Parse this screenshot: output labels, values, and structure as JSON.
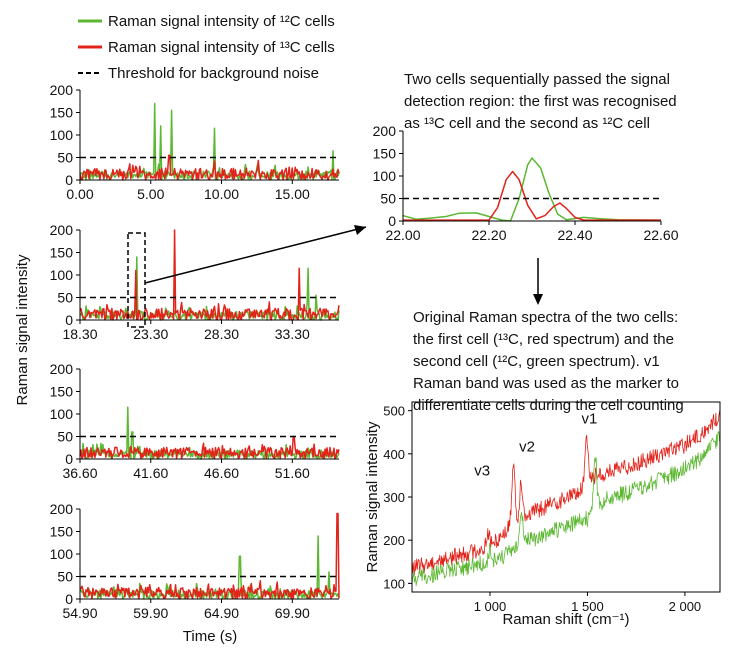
{
  "legend": {
    "green_label": "Raman signal intensity of ¹²C cells",
    "red_label": "Raman signal intensity of ¹³C cells",
    "threshold_label": "Threshold for background noise"
  },
  "colors": {
    "green": "#5cb832",
    "red": "#e2231a",
    "threshold": "#000000"
  },
  "annotations": {
    "top_right": [
      "Two cells sequentially passed the signal",
      "detection region: the first was recognised",
      "as ¹³C cell and the second as ¹²C cell"
    ],
    "bottom_right": [
      "Original Raman spectra of the two cells:",
      "the first cell (¹³C, red spectrum) and the",
      "second cell (¹²C, green spectrum). v1",
      "Raman band was used as the marker to",
      "differentiate cells during the cell counting"
    ]
  },
  "chart_data": [
    {
      "id": "time-series-1",
      "type": "line",
      "xlim": [
        0,
        18.3
      ],
      "ylim": [
        0,
        200
      ],
      "xticks": [
        "0.00",
        "5.00",
        "10.00",
        "15.00"
      ],
      "xtick_values": [
        0,
        5,
        10,
        15
      ],
      "yticks": [
        "0",
        "50",
        "100",
        "150",
        "200"
      ],
      "ytick_values": [
        0,
        50,
        100,
        150,
        200
      ],
      "threshold": 50,
      "series": [
        {
          "color": "green",
          "peaks": [
            [
              5.3,
              170
            ],
            [
              5.7,
              120
            ],
            [
              6.5,
              155
            ],
            [
              9.5,
              115
            ],
            [
              17.9,
              65
            ]
          ]
        },
        {
          "color": "red",
          "peaks": [
            [
              6.3,
              55
            ]
          ]
        }
      ]
    },
    {
      "id": "time-series-2",
      "type": "line",
      "xlim": [
        18.3,
        36.6
      ],
      "ylim": [
        0,
        200
      ],
      "xticks": [
        "18.30",
        "23.30",
        "28.30",
        "33.30"
      ],
      "xtick_values": [
        18.3,
        23.3,
        28.3,
        33.3
      ],
      "yticks": [
        "0",
        "50",
        "100",
        "150",
        "200"
      ],
      "ytick_values": [
        0,
        50,
        100,
        150,
        200
      ],
      "threshold": 50,
      "ylabel": "Raman signal intensity",
      "series": [
        {
          "color": "green",
          "peaks": [
            [
              22.3,
              140
            ],
            [
              34.4,
              115
            ],
            [
              35.0,
              55
            ]
          ]
        },
        {
          "color": "red",
          "peaks": [
            [
              22.25,
              110
            ],
            [
              25.0,
              200
            ],
            [
              33.8,
              115
            ]
          ]
        }
      ]
    },
    {
      "id": "time-series-3",
      "type": "line",
      "xlim": [
        36.6,
        54.9
      ],
      "ylim": [
        0,
        200
      ],
      "xticks": [
        "36.60",
        "41.60",
        "46.60",
        "51.60"
      ],
      "xtick_values": [
        36.6,
        41.6,
        46.6,
        51.6
      ],
      "yticks": [
        "0",
        "50",
        "100",
        "150",
        "200"
      ],
      "ytick_values": [
        0,
        50,
        100,
        150,
        200
      ],
      "threshold": 50,
      "series": [
        {
          "color": "green",
          "peaks": [
            [
              40.0,
              115
            ],
            [
              40.3,
              60
            ]
          ]
        },
        {
          "color": "red",
          "peaks": [
            [
              51.7,
              50
            ]
          ]
        }
      ]
    },
    {
      "id": "time-series-4",
      "type": "line",
      "xlim": [
        54.9,
        73.2
      ],
      "ylim": [
        0,
        200
      ],
      "xticks": [
        "54.90",
        "59.90",
        "64.90",
        "69.90"
      ],
      "xtick_values": [
        54.9,
        59.9,
        64.9,
        69.9
      ],
      "yticks": [
        "0",
        "50",
        "100",
        "150",
        "200"
      ],
      "ytick_values": [
        0,
        50,
        100,
        150,
        200
      ],
      "threshold": 50,
      "xlabel": "Time (s)",
      "series": [
        {
          "color": "green",
          "peaks": [
            [
              66.2,
              95
            ],
            [
              71.7,
              140
            ],
            [
              72.5,
              60
            ]
          ]
        },
        {
          "color": "red",
          "peaks": [
            [
              73.1,
              190
            ]
          ]
        }
      ]
    },
    {
      "id": "zoom-panel",
      "type": "line",
      "xlim": [
        22.0,
        22.6
      ],
      "ylim": [
        0,
        200
      ],
      "xticks": [
        "22.00",
        "22.20",
        "22.40",
        "22.60"
      ],
      "xtick_values": [
        22.0,
        22.2,
        22.4,
        22.6
      ],
      "yticks": [
        "0",
        "50",
        "100",
        "150",
        "200"
      ],
      "ytick_values": [
        0,
        50,
        100,
        150,
        200
      ],
      "threshold": 50,
      "series": [
        {
          "color": "green",
          "points": [
            [
              22.0,
              12
            ],
            [
              22.03,
              4
            ],
            [
              22.06,
              6
            ],
            [
              22.1,
              10
            ],
            [
              22.13,
              17
            ],
            [
              22.17,
              18
            ],
            [
              22.2,
              10
            ],
            [
              22.23,
              2
            ],
            [
              22.25,
              0
            ],
            [
              22.27,
              50
            ],
            [
              22.29,
              125
            ],
            [
              22.3,
              140
            ],
            [
              22.32,
              118
            ],
            [
              22.34,
              60
            ],
            [
              22.36,
              15
            ],
            [
              22.38,
              3
            ],
            [
              22.42,
              8
            ],
            [
              22.46,
              5
            ],
            [
              22.5,
              3
            ],
            [
              22.6,
              2
            ]
          ]
        },
        {
          "color": "red",
          "points": [
            [
              22.0,
              2
            ],
            [
              22.2,
              2
            ],
            [
              22.22,
              30
            ],
            [
              22.24,
              92
            ],
            [
              22.255,
              110
            ],
            [
              22.27,
              92
            ],
            [
              22.29,
              35
            ],
            [
              22.31,
              5
            ],
            [
              22.33,
              12
            ],
            [
              22.35,
              32
            ],
            [
              22.365,
              40
            ],
            [
              22.38,
              28
            ],
            [
              22.4,
              8
            ],
            [
              22.42,
              2
            ],
            [
              22.6,
              2
            ]
          ]
        }
      ]
    },
    {
      "id": "raman-spectra",
      "type": "line",
      "xlim": [
        600,
        2180
      ],
      "ylim": [
        80,
        520
      ],
      "xticks": [
        "1 000",
        "1 500",
        "2 000"
      ],
      "xtick_values": [
        1000,
        1500,
        2000
      ],
      "yticks": [
        "100",
        "200",
        "300",
        "400",
        "500"
      ],
      "ytick_values": [
        100,
        200,
        300,
        400,
        500
      ],
      "xlabel": "Raman shift (cm⁻¹)",
      "ylabel": "Raman signal intensity",
      "annotations": [
        {
          "text": "v3",
          "x": 960,
          "y": 350
        },
        {
          "text": "v2",
          "x": 1190,
          "y": 405
        },
        {
          "text": "v1",
          "x": 1510,
          "y": 470
        }
      ],
      "series": [
        {
          "color": "red",
          "baseline": [
            [
              600,
              135
            ],
            [
              800,
              160
            ],
            [
              1000,
              185
            ],
            [
              1100,
              230
            ],
            [
              1200,
              260
            ],
            [
              1300,
              280
            ],
            [
              1400,
              300
            ],
            [
              1490,
              320
            ],
            [
              1500,
              345
            ],
            [
              1600,
              355
            ],
            [
              1700,
              370
            ],
            [
              1800,
              385
            ],
            [
              1900,
              405
            ],
            [
              2000,
              420
            ],
            [
              2100,
              450
            ],
            [
              2180,
              490
            ]
          ],
          "peaks": [
            [
              990,
              35
            ],
            [
              1120,
              145
            ],
            [
              1160,
              90
            ],
            [
              1495,
              110
            ]
          ]
        },
        {
          "color": "green",
          "baseline": [
            [
              600,
              110
            ],
            [
              800,
              130
            ],
            [
              1000,
              150
            ],
            [
              1100,
              170
            ],
            [
              1200,
              200
            ],
            [
              1300,
              215
            ],
            [
              1400,
              235
            ],
            [
              1500,
              250
            ],
            [
              1600,
              295
            ],
            [
              1700,
              310
            ],
            [
              1800,
              325
            ],
            [
              1900,
              345
            ],
            [
              2000,
              365
            ],
            [
              2100,
              395
            ],
            [
              2180,
              440
            ]
          ],
          "peaks": [
            [
              1000,
              25
            ],
            [
              1160,
              90
            ],
            [
              1540,
              125
            ]
          ]
        }
      ]
    }
  ]
}
